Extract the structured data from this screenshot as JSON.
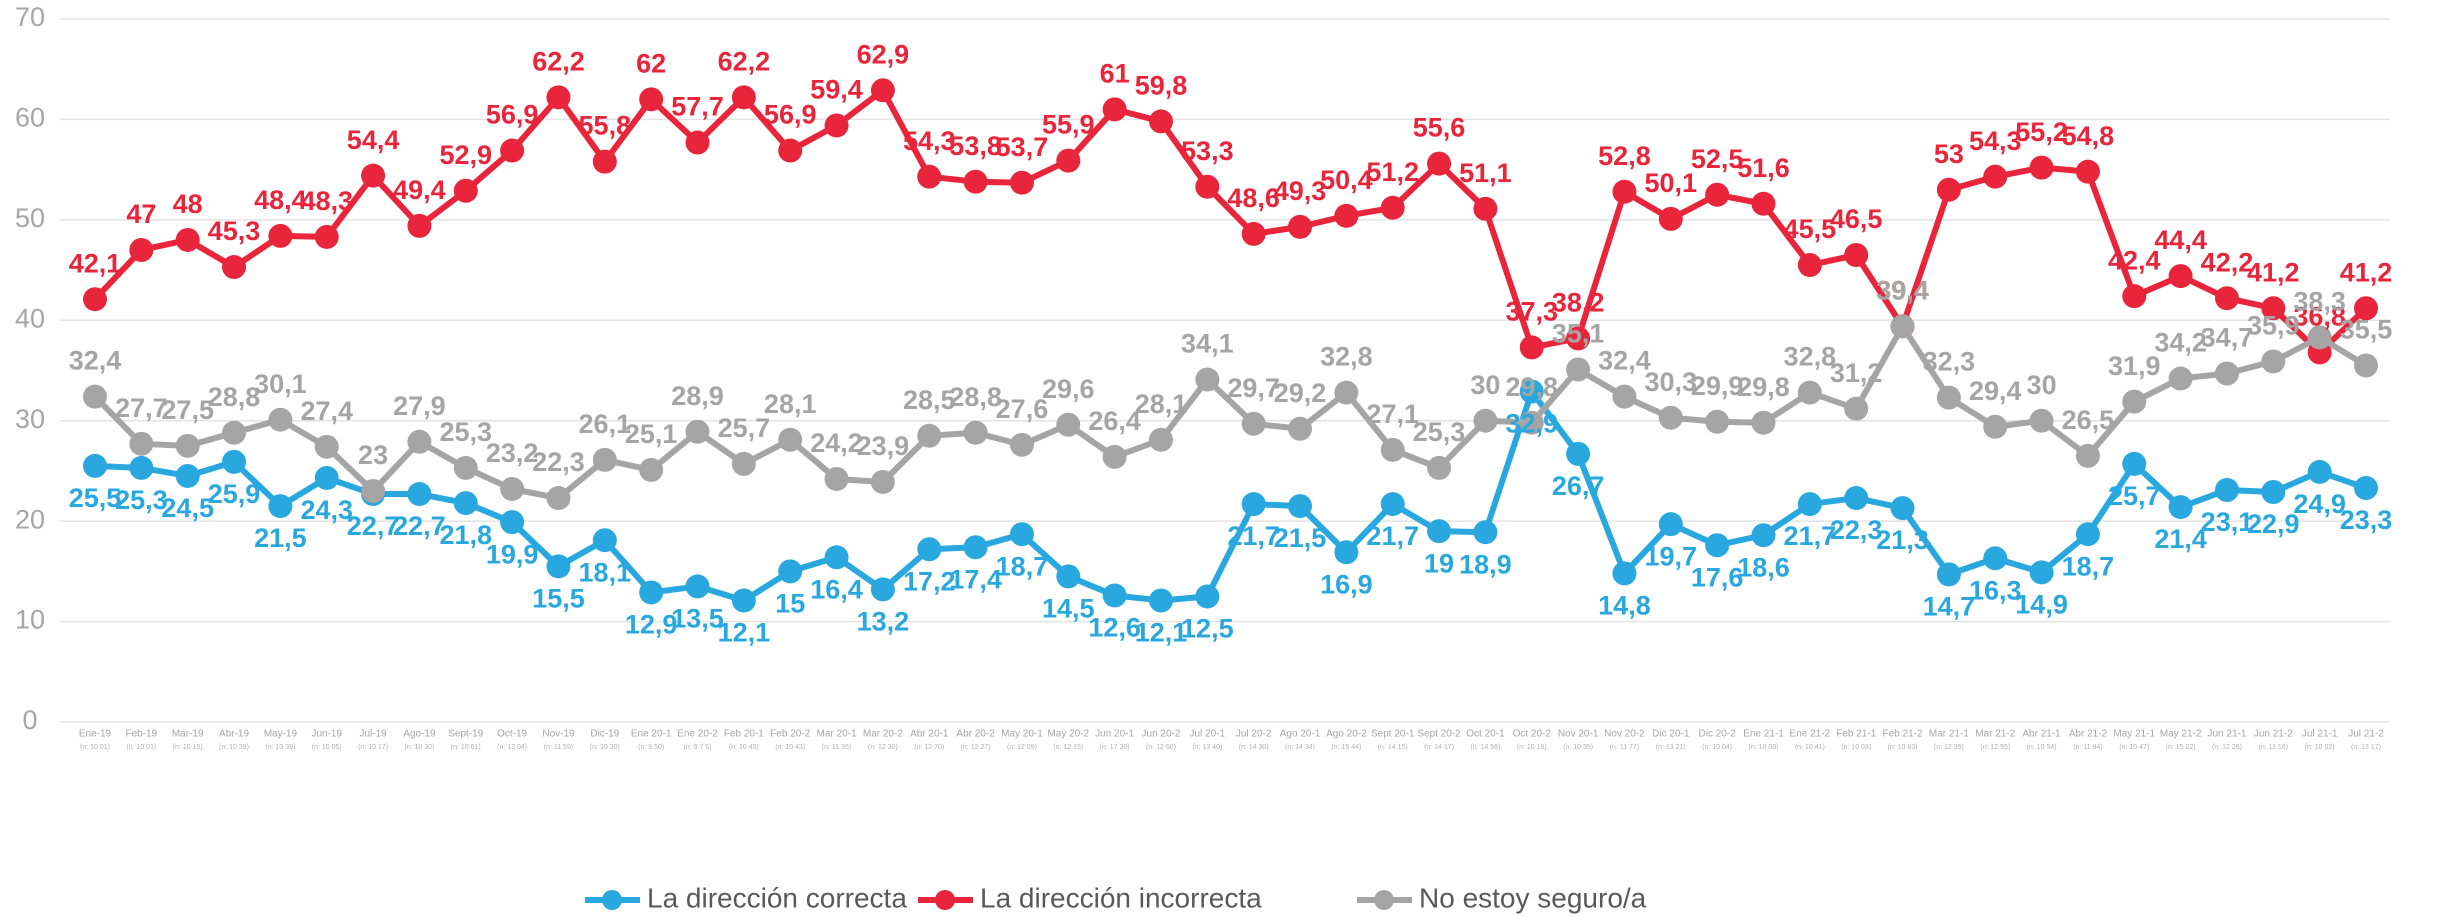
{
  "chart_data": {
    "type": "line",
    "categories": [
      "Ene-19",
      "Feb-19",
      "Mar-19",
      "Abr-19",
      "May-19",
      "Jun-19",
      "Jul-19",
      "Ago-19",
      "Sept-19",
      "Oct-19",
      "Nov-19",
      "Dic-19",
      "Ene 20-1",
      "Ene 20-2",
      "Feb 20-1",
      "Feb 20-2",
      "Mar 20-1",
      "Mar 20-2",
      "Abr 20-1",
      "Abr 20-2",
      "May 20-1",
      "May 20-2",
      "Jun 20-1",
      "Jun 20-2",
      "Jul 20-1",
      "Jul 20-2",
      "Ago 20-1",
      "Ago 20-2",
      "Sept 20-1",
      "Sept 20-2",
      "Oct 20-1",
      "Oct 20-2",
      "Nov 20-1",
      "Nov 20-2",
      "Dic 20-1",
      "Dic 20-2",
      "Ene 21-1",
      "Ene 21-2",
      "Feb 21-1",
      "Feb 21-2",
      "Mar 21-1",
      "Mar 21-2",
      "Abr 21-1",
      "Abr 21-2",
      "May 21-1",
      "May 21-2",
      "Jun 21-1",
      "Jun 21-2",
      "Jul 21-1",
      "Jul 21-2"
    ],
    "category_sublabels": [
      "(n: 10 01)",
      "(n: 10 01)",
      "(n: 10 15)",
      "(n: 10 39)",
      "(n: 10 39)",
      "(n: 10 05)",
      "(n: 10 17)",
      "(n: 10 30)",
      "(n: 10 61)",
      "(n: 13 04)",
      "(n: 11 59)",
      "(n: 10 30)",
      "(n: 9 50)",
      "(n: 9 7 5)",
      "(n: 10 45)",
      "(n: 10 43)",
      "(n: 11 35)",
      "(n: 12 30)",
      "(n: 12 70)",
      "(n: 12 27)",
      "(n: 12 09)",
      "(n: 12 15)",
      "(n: 17 30)",
      "(n: 12 60)",
      "(n: 13 40)",
      "(n: 14 30)",
      "(n: 14 34)",
      "(n: 15 44)",
      "(n: 14 15)",
      "(n: 14 17)",
      "(n: 14 58)",
      "(n: 10 16)",
      "(n: 10 35)",
      "(n: 11 77)",
      "(n: 13 21)",
      "(n: 10 04)",
      "(n: 10 03)",
      "(n: 10 41)",
      "(n: 10 03)",
      "(n: 10 83)",
      "(n: 12 35)",
      "(n: 12 55)",
      "(n: 10 54)",
      "(n: 11 84)",
      "(n: 10 47)",
      "(n: 15 22)",
      "(n: 12 26)",
      "(n: 11 16)",
      "(n: 10 02)",
      "(n: 13 17)"
    ],
    "series": [
      {
        "name": "La dirección correcta",
        "color": "#29a8e0",
        "label_side": "below",
        "values": [
          25.5,
          25.3,
          24.5,
          25.9,
          21.5,
          24.3,
          22.7,
          22.7,
          21.8,
          19.9,
          15.5,
          18.1,
          12.9,
          13.5,
          12.1,
          15,
          16.4,
          13.2,
          17.2,
          17.4,
          18.7,
          14.5,
          12.6,
          12.1,
          12.5,
          21.7,
          21.5,
          16.9,
          21.7,
          19,
          18.9,
          32.9,
          26.7,
          14.8,
          19.7,
          17.6,
          18.6,
          21.7,
          22.3,
          21.3,
          14.7,
          16.3,
          14.9,
          18.7,
          25.7,
          21.4,
          23.1,
          22.9,
          24.9,
          23.3
        ],
        "value_labels": [
          "25,5",
          "25,3",
          "24,5",
          "25,9",
          "21,5",
          "24,3",
          "22,7",
          "22,7",
          "21,8",
          "19,9",
          "15,5",
          "18,1",
          "12,9",
          "13,5",
          "12,1",
          "15",
          "16,4",
          "13,2",
          "17,2",
          "17,4",
          "18,7",
          "14,5",
          "12,6",
          "12,1",
          "12,5",
          "21,7",
          "21,5",
          "16,9",
          "21,7",
          "19",
          "18,9",
          "32,9",
          "26,7",
          "14,8",
          "19,7",
          "17,6",
          "18,6",
          "21,7",
          "22,3",
          "21,3",
          "14,7",
          "16,3",
          "14,9",
          "18,7",
          "25,7",
          "21,4",
          "23,1",
          "22,9",
          "24,9",
          "23,3"
        ]
      },
      {
        "name": "La dirección incorrecta",
        "color": "#e8253b",
        "label_side": "above",
        "values": [
          42.1,
          47,
          48,
          45.3,
          48.4,
          48.3,
          54.4,
          49.4,
          52.9,
          56.9,
          62.2,
          55.8,
          62,
          57.7,
          62.2,
          56.9,
          59.4,
          62.9,
          54.3,
          53.8,
          53.7,
          55.9,
          61,
          59.8,
          53.3,
          48.6,
          49.3,
          50.4,
          51.2,
          55.6,
          51.1,
          37.3,
          38.2,
          52.8,
          50.1,
          52.5,
          51.6,
          45.5,
          46.5,
          39.4,
          53,
          54.3,
          55.2,
          54.8,
          42.4,
          44.4,
          42.2,
          41.2,
          36.8,
          41.2
        ],
        "value_labels": [
          "42,1",
          "47",
          "48",
          "45,3",
          "48,4",
          "48,3",
          "54,4",
          "49,4",
          "52,9",
          "56,9",
          "62,2",
          "55,8",
          "62",
          "57,7",
          "62,2",
          "56,9",
          "59,4",
          "62,9",
          "54,3",
          "53,8",
          "53,7",
          "55,9",
          "61",
          "59,8",
          "53,3",
          "48,6",
          "49,3",
          "50,4",
          "51,2",
          "55,6",
          "51,1",
          "37,3",
          "38,2",
          "52,8",
          "50,1",
          "52,5",
          "51,6",
          "45,5",
          "46,5",
          "39,4",
          "53",
          "54,3",
          "55,2",
          "54,8",
          "42,4",
          "44,4",
          "42,2",
          "41,2",
          "36,8",
          "41,2"
        ]
      },
      {
        "name": "No estoy seguro/a",
        "color": "#a5a5a5",
        "label_side": "above",
        "values": [
          32.4,
          27.7,
          27.5,
          28.8,
          30.1,
          27.4,
          23,
          27.9,
          25.3,
          23.2,
          22.3,
          26.1,
          25.1,
          28.9,
          25.7,
          28.1,
          24.2,
          23.9,
          28.5,
          28.8,
          27.6,
          29.6,
          26.4,
          28.1,
          34.1,
          29.7,
          29.2,
          32.8,
          27.1,
          25.3,
          30,
          29.8,
          35.1,
          32.4,
          30.3,
          29.9,
          29.8,
          32.8,
          31.2,
          39.4,
          32.3,
          29.4,
          30,
          26.5,
          31.9,
          34.2,
          34.7,
          35.9,
          38.3,
          35.5
        ],
        "value_labels": [
          "32,4",
          "27,7",
          "27,5",
          "28,8",
          "30,1",
          "27,4",
          "23",
          "27,9",
          "25,3",
          "23,2",
          "22,3",
          "26,1",
          "25,1",
          "28,9",
          "25,7",
          "28,1",
          "24,2",
          "23,9",
          "28,5",
          "28,8",
          "27,6",
          "29,6",
          "26,4",
          "28,1",
          "34,1",
          "29,7",
          "29,2",
          "32,8",
          "27,1",
          "25,3",
          "30",
          "29,8",
          "35,1",
          "32,4",
          "30,3",
          "29,9",
          "29,8",
          "32,8",
          "31,2",
          "39,4",
          "32,3",
          "29,4",
          "30",
          "26,5",
          "31,9",
          "34,2",
          "34,7",
          "35,9",
          "38,3",
          "35,5"
        ]
      }
    ],
    "ylim": [
      0,
      70
    ],
    "yticks": [
      0,
      10,
      20,
      30,
      40,
      50,
      60,
      70
    ],
    "grid": true,
    "legend": "bottom"
  }
}
